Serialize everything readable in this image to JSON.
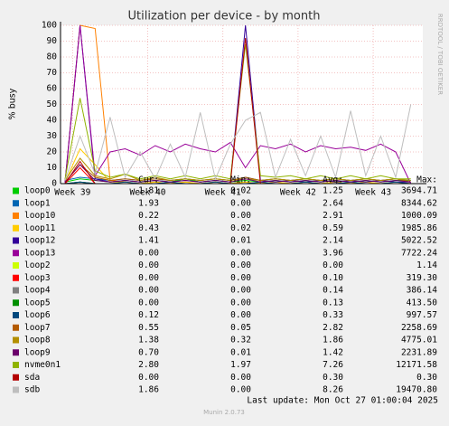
{
  "chart_data": {
    "type": "line",
    "title": "Utilization per device - by month",
    "y_label": "% busy",
    "side_note": "RRDTOOL / TOBI OETIKER",
    "x": [
      38.9,
      39.1,
      39.3,
      39.5,
      39.7,
      39.9,
      40.1,
      40.3,
      40.5,
      40.7,
      40.9,
      41.1,
      41.3,
      41.5,
      41.7,
      41.9,
      42.1,
      42.3,
      42.5,
      42.7,
      42.9,
      43.1,
      43.3,
      43.5
    ],
    "xlim": [
      38.84,
      43.66
    ],
    "xticks": [
      {
        "value": 39,
        "label": "Week 39"
      },
      {
        "value": 40,
        "label": "Week 40"
      },
      {
        "value": 41,
        "label": "Week 41"
      },
      {
        "value": 42,
        "label": "Week 42"
      },
      {
        "value": 43,
        "label": "Week 43"
      }
    ],
    "ylim": [
      0,
      100
    ],
    "yticks": [
      0,
      10,
      20,
      30,
      40,
      50,
      60,
      70,
      80,
      90,
      100
    ],
    "grid": true,
    "legend_header": {
      "cur": "Cur:",
      "min": "Min:",
      "avg": "Avg:",
      "max": "Max:"
    },
    "series": [
      {
        "name": "loop0",
        "color": "#00cc00",
        "cur": "1.81",
        "min": "0.02",
        "avg": "1.25",
        "max": "3694.71",
        "values": [
          1,
          3,
          2,
          1,
          2,
          1,
          2,
          1,
          3,
          1,
          2,
          1,
          2,
          1,
          2,
          1,
          2,
          1,
          2,
          1,
          2,
          1,
          2,
          2
        ]
      },
      {
        "name": "loop1",
        "color": "#0066b3",
        "cur": "1.93",
        "min": "0.00",
        "avg": "2.64",
        "max": "8344.62",
        "values": [
          2,
          4,
          3,
          2,
          3,
          2,
          3,
          2,
          3,
          2,
          3,
          2,
          4,
          2,
          3,
          2,
          3,
          2,
          3,
          2,
          3,
          2,
          3,
          2
        ]
      },
      {
        "name": "loop10",
        "color": "#ff8000",
        "cur": "0.22",
        "min": "0.00",
        "avg": "2.91",
        "max": "1000.09",
        "values": [
          1,
          100,
          98,
          2,
          1,
          0,
          1,
          0,
          1,
          0,
          1,
          0,
          1,
          0,
          1,
          0,
          1,
          0,
          1,
          0,
          1,
          0,
          0,
          0
        ]
      },
      {
        "name": "loop11",
        "color": "#ffcc00",
        "cur": "0.43",
        "min": "0.02",
        "avg": "0.59",
        "max": "1985.86",
        "values": [
          1,
          22,
          12,
          1,
          1,
          0,
          1,
          0,
          1,
          0,
          1,
          0,
          1,
          0,
          1,
          0,
          1,
          0,
          1,
          0,
          1,
          0,
          1,
          0
        ]
      },
      {
        "name": "loop12",
        "color": "#330099",
        "cur": "1.41",
        "min": "0.01",
        "avg": "2.14",
        "max": "5022.52",
        "values": [
          1,
          100,
          3,
          1,
          2,
          1,
          2,
          1,
          2,
          1,
          2,
          1,
          100,
          2,
          1,
          2,
          1,
          2,
          1,
          2,
          1,
          2,
          1,
          1
        ]
      },
      {
        "name": "loop13",
        "color": "#990099",
        "cur": "0.00",
        "min": "0.00",
        "avg": "3.96",
        "max": "7722.24",
        "values": [
          0,
          100,
          5,
          20,
          22,
          18,
          24,
          20,
          25,
          22,
          20,
          26,
          10,
          24,
          22,
          25,
          20,
          24,
          22,
          23,
          21,
          25,
          20,
          0
        ]
      },
      {
        "name": "loop2",
        "color": "#ccff00",
        "cur": "0.00",
        "min": "0.00",
        "avg": "0.00",
        "max": "1.14",
        "values": [
          0,
          0,
          0,
          0,
          0,
          0,
          0,
          0,
          0,
          0,
          0,
          0,
          0,
          0,
          0,
          0,
          0,
          0,
          0,
          0,
          0,
          0,
          0,
          0
        ]
      },
      {
        "name": "loop3",
        "color": "#ff0000",
        "cur": "0.00",
        "min": "0.00",
        "avg": "0.10",
        "max": "319.30",
        "values": [
          0,
          10,
          0,
          0,
          0,
          0,
          0,
          0,
          0,
          0,
          0,
          0,
          0,
          0,
          0,
          0,
          0,
          0,
          0,
          0,
          0,
          0,
          0,
          0
        ]
      },
      {
        "name": "loop4",
        "color": "#808080",
        "cur": "0.00",
        "min": "0.00",
        "avg": "0.14",
        "max": "386.14",
        "values": [
          0,
          1,
          0,
          0,
          0,
          0,
          0,
          0,
          0,
          0,
          0,
          0,
          0,
          0,
          0,
          0,
          0,
          0,
          0,
          0,
          0,
          0,
          0,
          0
        ]
      },
      {
        "name": "loop5",
        "color": "#008f00",
        "cur": "0.00",
        "min": "0.00",
        "avg": "0.13",
        "max": "413.50",
        "values": [
          0,
          1,
          0,
          0,
          0,
          0,
          0,
          0,
          0,
          0,
          0,
          0,
          0,
          0,
          0,
          0,
          0,
          0,
          0,
          0,
          0,
          0,
          0,
          0
        ]
      },
      {
        "name": "loop6",
        "color": "#00487d",
        "cur": "0.12",
        "min": "0.00",
        "avg": "0.33",
        "max": "997.57",
        "values": [
          0,
          1,
          0,
          0,
          1,
          0,
          0,
          1,
          0,
          0,
          1,
          0,
          0,
          1,
          0,
          0,
          1,
          0,
          0,
          1,
          0,
          0,
          1,
          0
        ]
      },
      {
        "name": "loop7",
        "color": "#b35a00",
        "cur": "0.55",
        "min": "0.05",
        "avg": "2.82",
        "max": "2258.69",
        "values": [
          1,
          12,
          4,
          2,
          3,
          2,
          3,
          2,
          3,
          2,
          3,
          2,
          4,
          2,
          3,
          2,
          3,
          2,
          3,
          2,
          3,
          2,
          3,
          1
        ]
      },
      {
        "name": "loop8",
        "color": "#b38f00",
        "cur": "1.38",
        "min": "0.32",
        "avg": "1.86",
        "max": "4775.01",
        "values": [
          2,
          16,
          5,
          3,
          6,
          2,
          4,
          2,
          3,
          2,
          3,
          2,
          3,
          2,
          3,
          2,
          3,
          2,
          3,
          2,
          3,
          2,
          3,
          2
        ]
      },
      {
        "name": "loop9",
        "color": "#6b006b",
        "cur": "0.70",
        "min": "0.01",
        "avg": "1.42",
        "max": "2231.89",
        "values": [
          1,
          12,
          2,
          1,
          2,
          1,
          2,
          1,
          2,
          1,
          2,
          1,
          3,
          1,
          2,
          1,
          2,
          1,
          2,
          1,
          2,
          1,
          2,
          1
        ]
      },
      {
        "name": "nvme0n1",
        "color": "#8fb300",
        "cur": "2.80",
        "min": "1.97",
        "avg": "7.26",
        "max": "12171.58",
        "values": [
          3,
          54,
          8,
          4,
          6,
          3,
          5,
          3,
          5,
          3,
          5,
          3,
          88,
          5,
          4,
          5,
          3,
          5,
          3,
          5,
          3,
          5,
          3,
          3
        ]
      },
      {
        "name": "sda",
        "color": "#b30000",
        "cur": "0.00",
        "min": "0.00",
        "avg": "0.30",
        "max": "0.30",
        "values": [
          0,
          14,
          0,
          0,
          0,
          0,
          0,
          0,
          0,
          0,
          0,
          0,
          92,
          0,
          0,
          0,
          0,
          0,
          0,
          0,
          0,
          0,
          0,
          0
        ]
      },
      {
        "name": "sdb",
        "color": "#bebebe",
        "cur": "1.86",
        "min": "0.00",
        "avg": "8.26",
        "max": "19470.80",
        "values": [
          2,
          30,
          6,
          42,
          4,
          20,
          3,
          25,
          4,
          45,
          3,
          25,
          40,
          45,
          4,
          28,
          5,
          30,
          4,
          46,
          5,
          30,
          4,
          50
        ]
      }
    ],
    "last_update": "Last update: Mon Oct 27 01:00:04 2025",
    "footer": "Munin 2.0.73"
  }
}
